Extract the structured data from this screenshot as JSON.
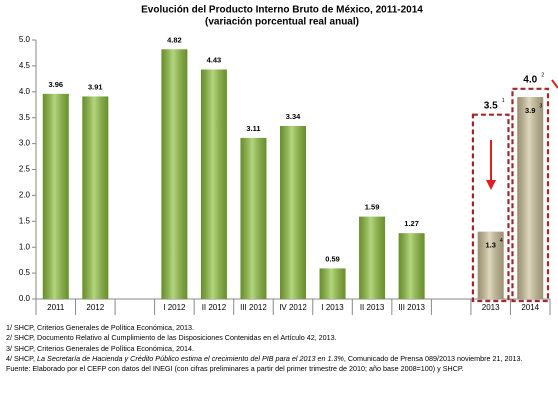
{
  "chart_data": {
    "type": "bar",
    "title": "Evolución del Producto Interno Bruto de México, 2011-2014",
    "subtitle": "(variación porcentual real anual)",
    "categories": [
      "2011",
      "2012",
      null,
      "I 2012",
      "II 2012",
      "III 2012",
      "IV 2012",
      "I 2013",
      "II 2013",
      "III 2013",
      null,
      "2013",
      "2014"
    ],
    "values": [
      3.96,
      3.91,
      null,
      4.82,
      4.43,
      3.11,
      3.34,
      0.59,
      1.59,
      1.27,
      null,
      1.3,
      3.9
    ],
    "value_notes": [
      null,
      null,
      null,
      null,
      null,
      null,
      null,
      null,
      null,
      null,
      null,
      "4",
      "3"
    ],
    "colors": [
      "#8cbf3a",
      "#8cbf3a",
      null,
      "#8cbf3a",
      "#8cbf3a",
      "#8cbf3a",
      "#8cbf3a",
      "#8cbf3a",
      "#8cbf3a",
      "#8cbf3a",
      null,
      "#cfc39a",
      "#cfc39a"
    ],
    "annotations": [
      {
        "category": "2013",
        "value": 3.5,
        "note": "1"
      },
      {
        "category": "2014",
        "value": {
          "value": 4,
          "label": "4.0"
        },
        "note": "2"
      }
    ],
    "annotation_color": "#a0282a",
    "ylim": [
      0,
      5
    ],
    "yticks": [
      {
        "value": 0,
        "label": "0.0"
      },
      0.5,
      {
        "value": 1,
        "label": "1.0"
      },
      1.5,
      {
        "value": 2,
        "label": "2.0"
      },
      2.5,
      {
        "value": 3,
        "label": "3.0"
      },
      3.5,
      {
        "value": 4,
        "label": "4.0"
      },
      4.5,
      {
        "value": 5,
        "label": "5.0"
      }
    ],
    "grid": false
  },
  "footnotes": [
    "1/ SHCP, Criterios Generales de Política Económica, 2013.",
    "2/ SHCP, Documento Relativo al Cumplimiento de las Disposiciones Contenidas en el Artículo 42, 2013.",
    "3/ SHCP, Criterios Generales de Política Económica, 2014.",
    [
      "4/ SHCP, ",
      "La Secretaría de Hacienda y Crédito Público estima el crecimiento del PIB para el 2013 en 1.3%",
      ", Comunicado de Prensa 089/2013 noviembre 21, 2013."
    ],
    "Fuente: Elaborado por el CEFP con datos del INEGI (con cifras preliminares a partir del primer trimestre de 2010; año base 2008=100) y SHCP."
  ]
}
